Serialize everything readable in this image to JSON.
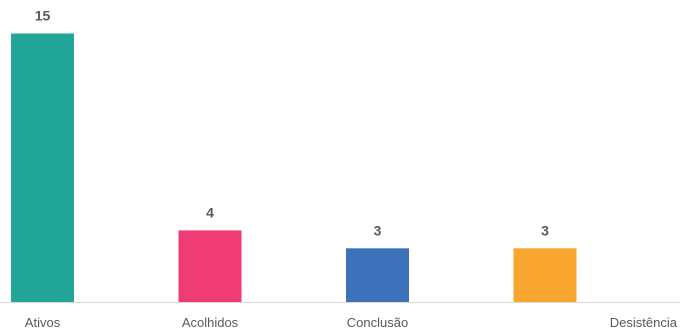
{
  "chart_data": {
    "type": "bar",
    "categories": [
      "Ativos",
      "Acolhidos",
      "Conclusão",
      "Desistência"
    ],
    "values": [
      15,
      4,
      3,
      3
    ],
    "colors": [
      "#22A699",
      "#F03C74",
      "#3D72BA",
      "#F9A631"
    ],
    "axis_color": "#D9D9D9",
    "label_color": "#595959",
    "ylim": [
      0,
      16
    ],
    "grid": false,
    "legend": "none",
    "title": "",
    "xlabel": "",
    "ylabel": ""
  }
}
